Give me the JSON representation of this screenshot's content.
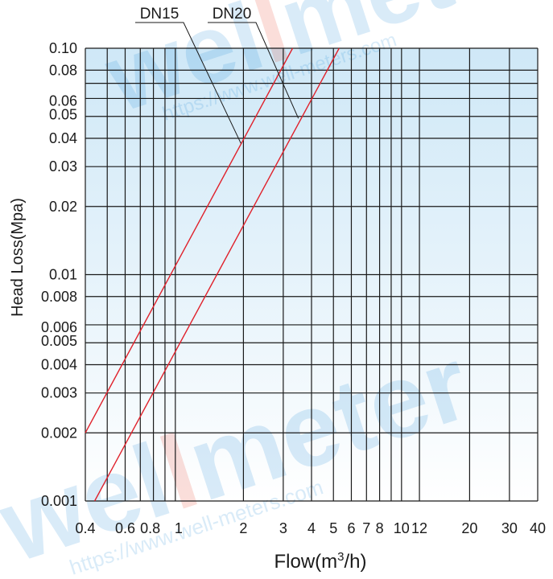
{
  "chart_data": {
    "type": "line",
    "title": "",
    "xlabel": "Flow(m",
    "xlabel_sup": "3",
    "xlabel_tail": "/h)",
    "ylabel": "Head Loss(Mpa)",
    "x_scale": "log",
    "y_scale": "log",
    "xlim": [
      0.4,
      40
    ],
    "ylim": [
      0.001,
      0.1
    ],
    "grid": true,
    "x_grid": [
      0.4,
      0.5,
      0.6,
      0.7,
      0.8,
      0.9,
      1,
      2,
      3,
      4,
      5,
      6,
      7,
      8,
      9,
      10,
      12,
      20,
      30,
      40
    ],
    "y_grid": [
      0.001,
      0.002,
      0.003,
      0.004,
      0.005,
      0.006,
      0.008,
      0.01,
      0.02,
      0.03,
      0.04,
      0.05,
      0.06,
      0.07,
      0.08,
      0.1
    ],
    "x_ticks": [
      {
        "v": 0.4,
        "label": "0.4"
      },
      {
        "v": 0.6,
        "label": "0.6"
      },
      {
        "v": 0.8,
        "label": "0.8"
      },
      {
        "v": 1,
        "label": "1"
      },
      {
        "v": 2,
        "label": "2"
      },
      {
        "v": 3,
        "label": "3"
      },
      {
        "v": 4,
        "label": "4"
      },
      {
        "v": 5,
        "label": "5"
      },
      {
        "v": 6,
        "label": "6"
      },
      {
        "v": 7,
        "label": "7"
      },
      {
        "v": 8,
        "label": "8"
      },
      {
        "v": 10,
        "label": "10"
      },
      {
        "v": 12,
        "label": "12"
      },
      {
        "v": 20,
        "label": "20"
      },
      {
        "v": 30,
        "label": "30"
      },
      {
        "v": 40,
        "label": "40"
      }
    ],
    "y_ticks": [
      {
        "v": 0.1,
        "label": "0.10"
      },
      {
        "v": 0.08,
        "label": "0.08"
      },
      {
        "v": 0.06,
        "label": "0.06"
      },
      {
        "v": 0.05,
        "label": "0.05"
      },
      {
        "v": 0.04,
        "label": "0.04"
      },
      {
        "v": 0.03,
        "label": "0.03"
      },
      {
        "v": 0.02,
        "label": "0.02"
      },
      {
        "v": 0.01,
        "label": "0.01"
      },
      {
        "v": 0.008,
        "label": "0.008"
      },
      {
        "v": 0.006,
        "label": "0.006"
      },
      {
        "v": 0.005,
        "label": "0.005"
      },
      {
        "v": 0.004,
        "label": "0.004"
      },
      {
        "v": 0.003,
        "label": "0.003"
      },
      {
        "v": 0.002,
        "label": "0.002"
      },
      {
        "v": 0.001,
        "label": "0.001"
      }
    ],
    "series": [
      {
        "name": "DN15",
        "color": "#e0212b",
        "x": [
          0.4,
          3.3
        ],
        "y": [
          0.002,
          0.1
        ],
        "label_point": {
          "x": 1.95,
          "y": 0.038
        }
      },
      {
        "name": "DN20",
        "color": "#e0212b",
        "x": [
          0.44,
          5.3
        ],
        "y": [
          0.001,
          0.1
        ],
        "label_point": {
          "x": 3.5,
          "y": 0.049
        }
      }
    ]
  },
  "watermark": {
    "brand_a": "wel",
    "brand_b": "l",
    "brand_c": "meter",
    "url": "https://www.well-meters.com",
    "color_a": "#2b8fd6",
    "color_b": "#e8432f"
  }
}
